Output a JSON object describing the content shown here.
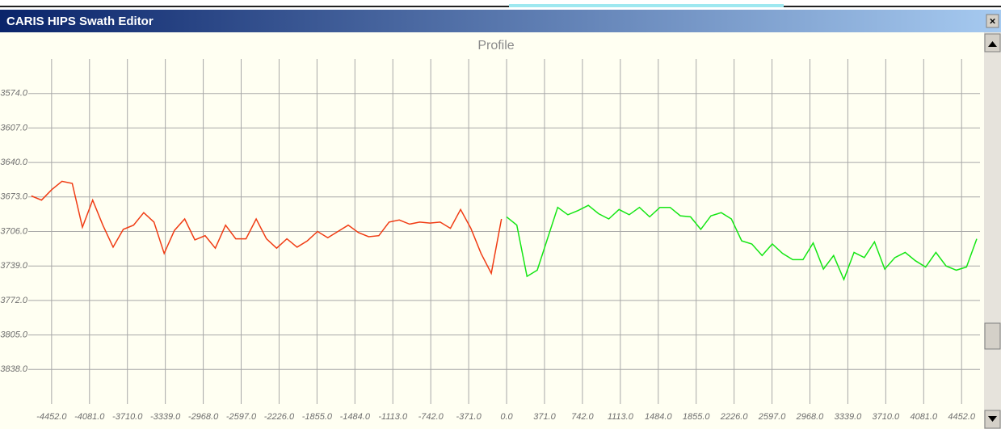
{
  "window": {
    "title": "CARIS HIPS Swath Editor",
    "close": "×"
  },
  "chart_data": {
    "type": "line",
    "title": "Profile",
    "xlim": [
      -4680,
      4632
    ],
    "ylim": [
      3541,
      3871
    ],
    "y_inverted": true,
    "grid": true,
    "xticks": [
      {
        "value": -4452,
        "label": "-4452.0"
      },
      {
        "value": -4081,
        "label": "-4081.0"
      },
      {
        "value": -3710,
        "label": "-3710.0"
      },
      {
        "value": -3339,
        "label": "-3339.0"
      },
      {
        "value": -2968,
        "label": "-2968.0"
      },
      {
        "value": -2597,
        "label": "-2597.0"
      },
      {
        "value": -2226,
        "label": "-2226.0"
      },
      {
        "value": -1855,
        "label": "-1855.0"
      },
      {
        "value": -1484,
        "label": "-1484.0"
      },
      {
        "value": -1113,
        "label": "-1113.0"
      },
      {
        "value": -742,
        "label": "-742.0"
      },
      {
        "value": -371,
        "label": "-371.0"
      },
      {
        "value": 0,
        "label": "0.0"
      },
      {
        "value": 371,
        "label": "371.0"
      },
      {
        "value": 742,
        "label": "742.0"
      },
      {
        "value": 1113,
        "label": "1113.0"
      },
      {
        "value": 1484,
        "label": "1484.0"
      },
      {
        "value": 1855,
        "label": "1855.0"
      },
      {
        "value": 2226,
        "label": "2226.0"
      },
      {
        "value": 2597,
        "label": "2597.0"
      },
      {
        "value": 2968,
        "label": "2968.0"
      },
      {
        "value": 3339,
        "label": "3339.0"
      },
      {
        "value": 3710,
        "label": "3710.0"
      },
      {
        "value": 4081,
        "label": "4081.0"
      },
      {
        "value": 4452,
        "label": "4452.0"
      }
    ],
    "yticks": [
      {
        "value": 3574,
        "label": "3574.0"
      },
      {
        "value": 3607,
        "label": "3607.0"
      },
      {
        "value": 3640,
        "label": "3640.0"
      },
      {
        "value": 3673,
        "label": "3673.0"
      },
      {
        "value": 3706,
        "label": "3706.0"
      },
      {
        "value": 3739,
        "label": "3739.0"
      },
      {
        "value": 3772,
        "label": "3772.0"
      },
      {
        "value": 3805,
        "label": "3805.0"
      },
      {
        "value": 3838,
        "label": "3838.0"
      }
    ],
    "series": [
      {
        "color": "#f03c14",
        "x": [
          -4650,
          -4550,
          -4450,
          -4350,
          -4250,
          -4150,
          -4050,
          -3950,
          -3850,
          -3750,
          -3650,
          -3550,
          -3450,
          -3350,
          -3250,
          -3150,
          -3050,
          -2950,
          -2850,
          -2750,
          -2650,
          -2550,
          -2450,
          -2350,
          -2250,
          -2150,
          -2050,
          -1950,
          -1850,
          -1750,
          -1650,
          -1550,
          -1450,
          -1350,
          -1250,
          -1150,
          -1050,
          -950,
          -850,
          -750,
          -650,
          -550,
          -450,
          -350,
          -250,
          -150,
          -50
        ],
        "values": [
          3672,
          3676,
          3666,
          3658,
          3660,
          3702,
          3676,
          3700,
          3721,
          3704,
          3700,
          3688,
          3697,
          3727,
          3705,
          3694,
          3714,
          3710,
          3722,
          3700,
          3713,
          3713,
          3694,
          3713,
          3722,
          3713,
          3721,
          3715,
          3706,
          3712,
          3706,
          3700,
          3707,
          3711,
          3710,
          3697,
          3695,
          3699,
          3697,
          3698,
          3697,
          3703,
          3685,
          3703,
          3727,
          3746,
          3694
        ]
      },
      {
        "color": "#14e614",
        "x": [
          0,
          100,
          200,
          300,
          400,
          500,
          600,
          700,
          800,
          900,
          1000,
          1100,
          1200,
          1300,
          1400,
          1500,
          1600,
          1700,
          1800,
          1900,
          2000,
          2100,
          2200,
          2300,
          2400,
          2500,
          2600,
          2700,
          2800,
          2900,
          3000,
          3100,
          3200,
          3300,
          3400,
          3500,
          3600,
          3700,
          3800,
          3900,
          4000,
          4100,
          4200,
          4300,
          4400,
          4500,
          4600
        ],
        "values": [
          3692,
          3700,
          3749,
          3743,
          3713,
          3683,
          3690,
          3686,
          3681,
          3689,
          3694,
          3685,
          3690,
          3683,
          3692,
          3683,
          3683,
          3691,
          3692,
          3704,
          3691,
          3688,
          3694,
          3715,
          3718,
          3729,
          3718,
          3727,
          3733,
          3733,
          3717,
          3742,
          3729,
          3752,
          3726,
          3731,
          3716,
          3742,
          3731,
          3726,
          3734,
          3740,
          3726,
          3739,
          3743,
          3740,
          3713
        ]
      }
    ]
  }
}
